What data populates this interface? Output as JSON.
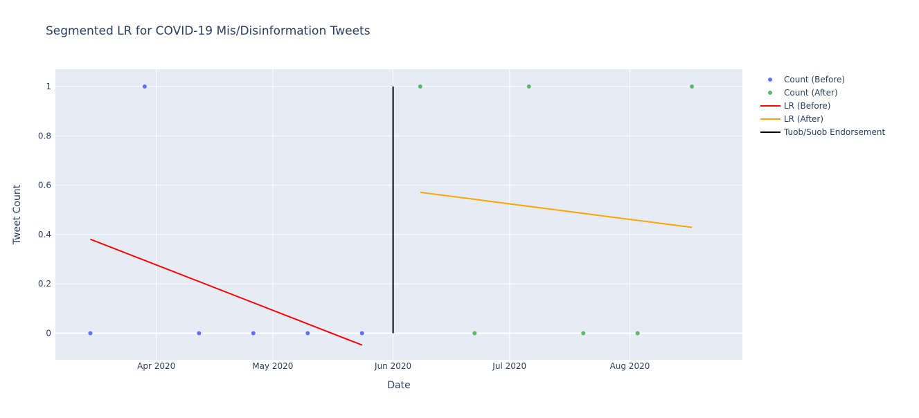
{
  "chart_data": {
    "type": "scatter",
    "title": "Segmented LR for COVID-19 Mis/Disinformation Tweets",
    "xlabel": "Date",
    "ylabel": "Tweet Count",
    "x_type": "date",
    "xlim": [
      "2020-03-06",
      "2020-08-30"
    ],
    "ylim": [
      -0.108,
      1.07
    ],
    "x_ticks": [
      {
        "date": "2020-04-01",
        "label": "Apr 2020"
      },
      {
        "date": "2020-05-01",
        "label": "May 2020"
      },
      {
        "date": "2020-06-01",
        "label": "Jun 2020"
      },
      {
        "date": "2020-07-01",
        "label": "Jul 2020"
      },
      {
        "date": "2020-08-01",
        "label": "Aug 2020"
      }
    ],
    "y_ticks": [
      {
        "value": 0,
        "label": "0"
      },
      {
        "value": 0.2,
        "label": "0.2"
      },
      {
        "value": 0.4,
        "label": "0.4"
      },
      {
        "value": 0.6,
        "label": "0.6"
      },
      {
        "value": 0.8,
        "label": "0.8"
      },
      {
        "value": 1,
        "label": "1"
      }
    ],
    "grid": true,
    "legend_position": "right",
    "series": [
      {
        "name": "Count (Before)",
        "mode": "markers",
        "color": "#636efa",
        "points": [
          {
            "x": "2020-03-15",
            "y": 0
          },
          {
            "x": "2020-03-29",
            "y": 1
          },
          {
            "x": "2020-04-12",
            "y": 0
          },
          {
            "x": "2020-04-26",
            "y": 0
          },
          {
            "x": "2020-05-10",
            "y": 0
          },
          {
            "x": "2020-05-24",
            "y": 0
          }
        ]
      },
      {
        "name": "Count (After)",
        "mode": "markers",
        "color": "#5fb76b",
        "points": [
          {
            "x": "2020-06-08",
            "y": 1
          },
          {
            "x": "2020-06-22",
            "y": 0
          },
          {
            "x": "2020-07-06",
            "y": 1
          },
          {
            "x": "2020-07-20",
            "y": 0
          },
          {
            "x": "2020-08-03",
            "y": 0
          },
          {
            "x": "2020-08-17",
            "y": 1
          }
        ]
      },
      {
        "name": "LR (Before)",
        "mode": "lines",
        "color": "#ff0000",
        "points": [
          {
            "x": "2020-03-15",
            "y": 0.381
          },
          {
            "x": "2020-05-24",
            "y": -0.048
          }
        ]
      },
      {
        "name": "LR (After)",
        "mode": "lines",
        "color": "#ffa500",
        "points": [
          {
            "x": "2020-06-08",
            "y": 0.571
          },
          {
            "x": "2020-08-17",
            "y": 0.429
          }
        ]
      },
      {
        "name": "Tuob/Suob Endorsement",
        "mode": "lines",
        "color": "#000000",
        "points": [
          {
            "x": "2020-06-01",
            "y": 0
          },
          {
            "x": "2020-06-01",
            "y": 1
          }
        ]
      }
    ]
  }
}
